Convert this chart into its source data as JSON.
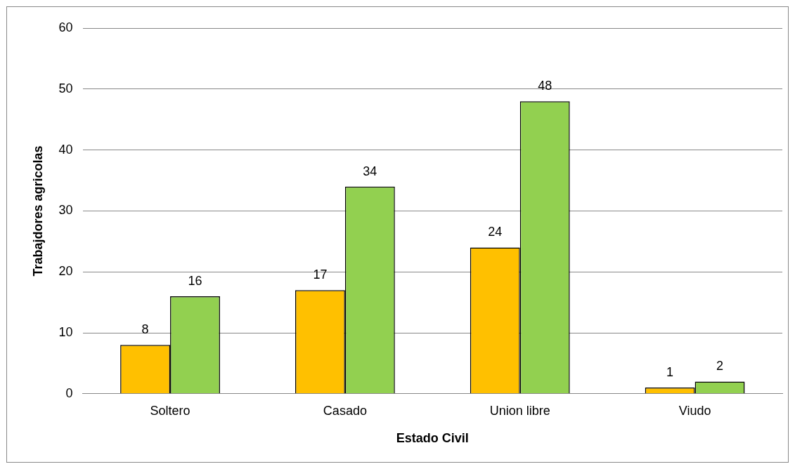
{
  "chart_data": {
    "type": "bar",
    "xlabel": "Estado Civil",
    "ylabel": "Trabajdores agricolas",
    "categories": [
      "Soltero",
      "Casado",
      "Union libre",
      "Viudo"
    ],
    "series": [
      {
        "color": "#ffc000",
        "values": [
          8,
          17,
          24,
          1
        ]
      },
      {
        "color": "#92d050",
        "values": [
          16,
          34,
          48,
          2
        ]
      }
    ],
    "ylim": [
      0,
      60
    ],
    "yticks": [
      0,
      10,
      20,
      30,
      40,
      50,
      60
    ],
    "grid": "y",
    "legend": false,
    "data_labels": true
  }
}
